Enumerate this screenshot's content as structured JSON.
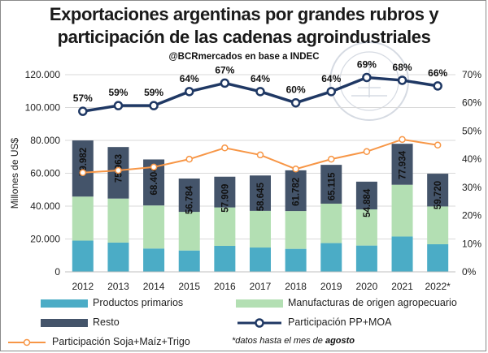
{
  "title_line1": "Exportaciones argentinas por grandes rubros y",
  "title_line2": "participación de las cadenas agroindustriales",
  "subtitle": "@BCRmercados  en base a INDEC",
  "footnote_prefix": "*datos hasta el mes de ",
  "footnote_bold": "agosto",
  "colors": {
    "primarios": "#4bacc6",
    "manufacturas": "#b3dfb3",
    "resto": "#44546a",
    "pp_moa": "#1f3864",
    "soja": "#f79646"
  },
  "chart_data": {
    "type": "bar",
    "ylabel": "Millones de US$",
    "ylim": [
      0,
      120000
    ],
    "y2lim": [
      0,
      0.7
    ],
    "y_ticks": [
      "0",
      "20.000",
      "40.000",
      "60.000",
      "80.000",
      "100.000",
      "120.000"
    ],
    "y2_ticks": [
      "0%",
      "10%",
      "20%",
      "30%",
      "40%",
      "50%",
      "60%",
      "70%"
    ],
    "categories": [
      "2012",
      "2013",
      "2014",
      "2015",
      "2016",
      "2017",
      "2018",
      "2019",
      "2020",
      "2021",
      "2022*"
    ],
    "totals_labels": [
      "79.982",
      "75.963",
      "68.404",
      "56.784",
      "57.909",
      "58.645",
      "61.782",
      "65.115",
      "54.884",
      "77.934",
      "59.720"
    ],
    "series": [
      {
        "name": "Productos primarios",
        "kind": "bar",
        "values": [
          19000,
          17800,
          14200,
          13000,
          15800,
          14800,
          14000,
          17500,
          16000,
          21500,
          16800
        ]
      },
      {
        "name": "Manufacturas de origen agropecuario",
        "kind": "bar",
        "values": [
          26800,
          26800,
          26200,
          23500,
          23400,
          22300,
          23000,
          24000,
          22000,
          31500,
          23000
        ]
      },
      {
        "name": "Resto",
        "kind": "bar",
        "values": [
          34182,
          31363,
          28004,
          20284,
          18709,
          21545,
          24782,
          23615,
          16884,
          24934,
          19920
        ]
      },
      {
        "name": "Participación PP+MOA",
        "kind": "line",
        "axis": "right",
        "values": [
          0.57,
          0.59,
          0.59,
          0.64,
          0.67,
          0.64,
          0.6,
          0.64,
          0.69,
          0.68,
          0.66
        ],
        "labels": [
          "57%",
          "59%",
          "59%",
          "64%",
          "67%",
          "64%",
          "60%",
          "64%",
          "69%",
          "68%",
          "66%"
        ]
      },
      {
        "name": "Participación Soja+Maíz+Trigo",
        "kind": "line",
        "axis": "right",
        "values": [
          0.352,
          0.36,
          0.372,
          0.4,
          0.44,
          0.415,
          0.365,
          0.4,
          0.427,
          0.47,
          0.45
        ]
      }
    ]
  }
}
